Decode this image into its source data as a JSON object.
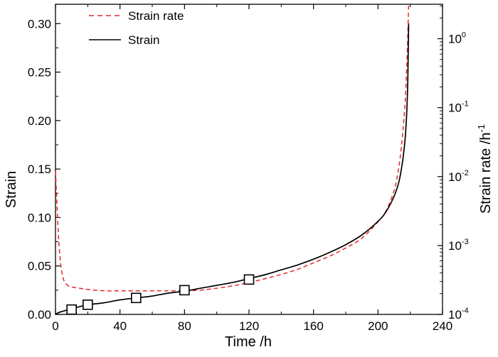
{
  "chart_data": {
    "type": "line",
    "xlabel": "Time /h",
    "ylabel_left": "Strain",
    "ylabel_right": "Strain rate /h",
    "ylabel_right_exponent": "-1",
    "xlim": [
      0,
      240
    ],
    "ylim_left": [
      0,
      0.32
    ],
    "ylim_right_log10": [
      -4,
      0.5
    ],
    "right_axis_scale": "log",
    "x_ticks": [
      "0",
      "40",
      "80",
      "120",
      "160",
      "200",
      "240"
    ],
    "y_ticks_left": [
      "0.00",
      "0.05",
      "0.10",
      "0.15",
      "0.20",
      "0.25",
      "0.30"
    ],
    "y_ticks_right": [
      {
        "base": "10",
        "exp": "-4",
        "value": 0.0001
      },
      {
        "base": "10",
        "exp": "-3",
        "value": 0.001
      },
      {
        "base": "10",
        "exp": "-2",
        "value": 0.01
      },
      {
        "base": "10",
        "exp": "-1",
        "value": 0.1
      },
      {
        "base": "10",
        "exp": "0",
        "value": 1
      }
    ],
    "legend_position": "top-left",
    "grid": false,
    "series": [
      {
        "name": "Strain rate",
        "axis": "right",
        "style": "dashed",
        "color": "#e8262d",
        "x": [
          0,
          1,
          2,
          3,
          4,
          5,
          6,
          8,
          10,
          15,
          20,
          30,
          40,
          50,
          60,
          70,
          80,
          90,
          100,
          110,
          120,
          130,
          140,
          150,
          160,
          170,
          180,
          190,
          200,
          205,
          210,
          213,
          215,
          216,
          217,
          218,
          218.5,
          219
        ],
        "y": [
          0.012,
          0.0035,
          0.0012,
          0.0006,
          0.0004,
          0.00032,
          0.00029,
          0.00026,
          0.00025,
          0.00024,
          0.00023,
          0.00022,
          0.00022,
          0.00022,
          0.00022,
          0.00022,
          0.00022,
          0.000225,
          0.00024,
          0.00026,
          0.00029,
          0.00033,
          0.00038,
          0.00045,
          0.00056,
          0.0007,
          0.00092,
          0.00128,
          0.0022,
          0.0032,
          0.0063,
          0.014,
          0.035,
          0.065,
          0.14,
          0.5,
          1.2,
          3.0
        ]
      },
      {
        "name": "Strain",
        "axis": "left",
        "style": "solid",
        "color": "#000000",
        "x": [
          0,
          2,
          4,
          6,
          10,
          15,
          20,
          30,
          40,
          50,
          60,
          70,
          80,
          90,
          100,
          110,
          120,
          130,
          140,
          150,
          160,
          170,
          180,
          190,
          200,
          205,
          210,
          213,
          215,
          216,
          217,
          218,
          218.5,
          219
        ],
        "y": [
          0.0,
          0.002,
          0.003,
          0.004,
          0.006,
          0.008,
          0.01,
          0.012,
          0.015,
          0.017,
          0.019,
          0.022,
          0.024,
          0.027,
          0.03,
          0.033,
          0.037,
          0.041,
          0.046,
          0.051,
          0.057,
          0.064,
          0.072,
          0.082,
          0.096,
          0.106,
          0.122,
          0.137,
          0.155,
          0.168,
          0.185,
          0.215,
          0.245,
          0.3
        ]
      }
    ],
    "markers": {
      "shape": "open-square",
      "series": "Strain",
      "x": [
        10,
        20,
        50,
        80,
        120
      ],
      "y": [
        0.005,
        0.01,
        0.017,
        0.025,
        0.036
      ]
    }
  }
}
